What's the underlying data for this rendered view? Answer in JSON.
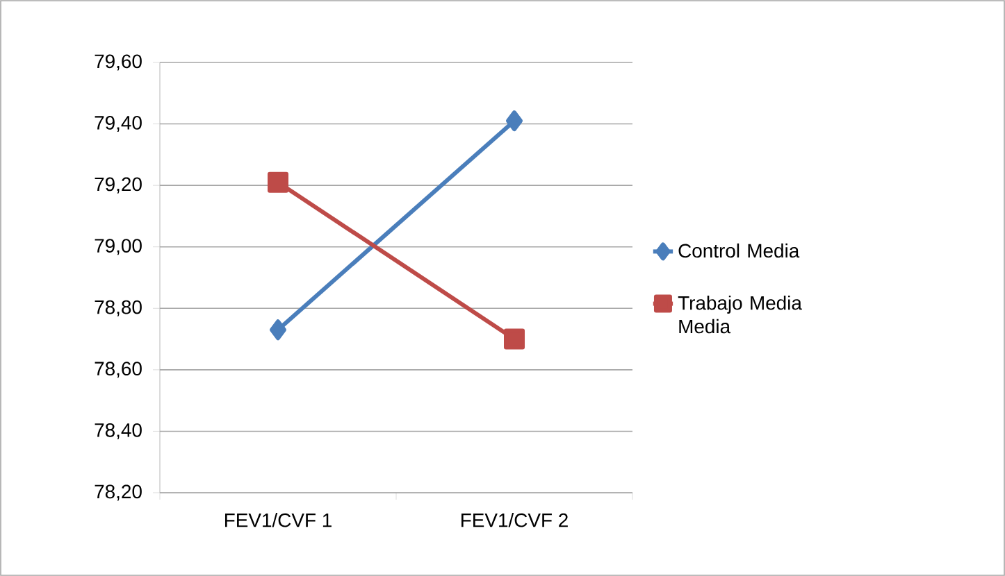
{
  "chart_data": {
    "type": "line",
    "categories": [
      "FEV1/CVF 1",
      "FEV1/CVF 2"
    ],
    "series": [
      {
        "name": "Control Media",
        "color": "#4a7ebb",
        "marker": "diamond",
        "values": [
          78.73,
          79.41
        ]
      },
      {
        "name": "Trabajo Media Media",
        "color": "#be4b48",
        "marker": "square",
        "values": [
          79.21,
          78.7
        ]
      }
    ],
    "ylim": [
      78.2,
      79.6
    ],
    "yticks": [
      {
        "value": 78.2,
        "label": "78,20"
      },
      {
        "value": 78.4,
        "label": "78,40"
      },
      {
        "value": 78.6,
        "label": "78,60"
      },
      {
        "value": 78.8,
        "label": "78,80"
      },
      {
        "value": 79.0,
        "label": "79,00"
      },
      {
        "value": 79.2,
        "label": "79,20"
      },
      {
        "value": 79.4,
        "label": "79,40"
      },
      {
        "value": 79.6,
        "label": "79,60"
      }
    ],
    "grid": "y",
    "legend": "right",
    "line_style": "solid"
  }
}
